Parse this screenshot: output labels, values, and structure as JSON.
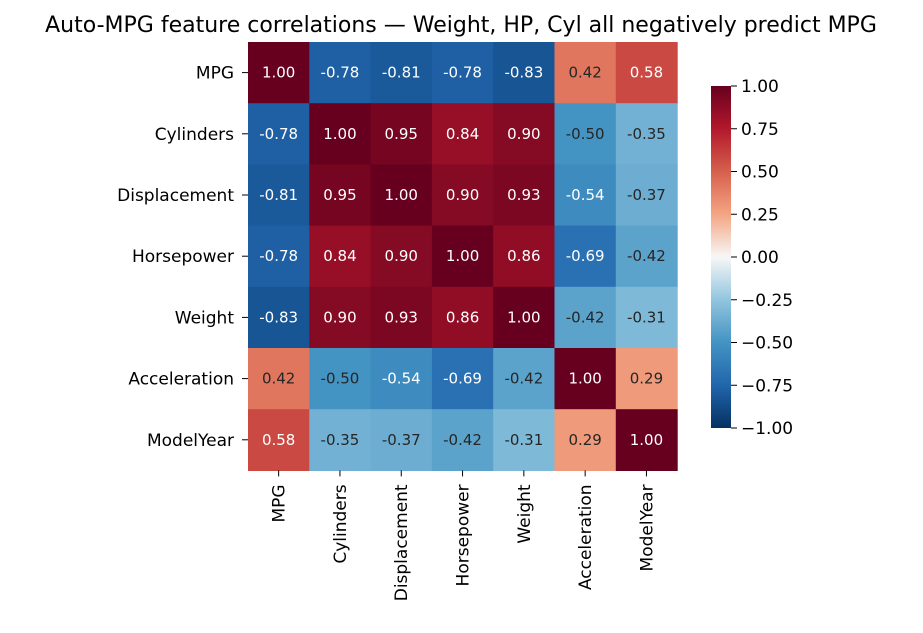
{
  "chart_data": {
    "type": "heatmap",
    "title": "Auto-MPG feature correlations — Weight, HP, Cyl all negatively predict MPG",
    "row_labels": [
      "MPG",
      "Cylinders",
      "Displacement",
      "Horsepower",
      "Weight",
      "Acceleration",
      "ModelYear"
    ],
    "col_labels": [
      "MPG",
      "Cylinders",
      "Displacement",
      "Horsepower",
      "Weight",
      "Acceleration",
      "ModelYear"
    ],
    "values": [
      [
        1.0,
        -0.78,
        -0.81,
        -0.78,
        -0.83,
        0.42,
        0.58
      ],
      [
        -0.78,
        1.0,
        0.95,
        0.84,
        0.9,
        -0.5,
        -0.35
      ],
      [
        -0.81,
        0.95,
        1.0,
        0.9,
        0.93,
        -0.54,
        -0.37
      ],
      [
        -0.78,
        0.84,
        0.9,
        1.0,
        0.86,
        -0.69,
        -0.42
      ],
      [
        -0.83,
        0.9,
        0.93,
        0.86,
        1.0,
        -0.42,
        -0.31
      ],
      [
        0.42,
        -0.5,
        -0.54,
        -0.69,
        -0.42,
        1.0,
        0.29
      ],
      [
        0.58,
        -0.35,
        -0.37,
        -0.42,
        -0.31,
        0.29,
        1.0
      ]
    ],
    "annotation_format": "0.00",
    "colormap": "RdBu_r",
    "vmin": -1.0,
    "vmax": 1.0,
    "colorbar": {
      "ticks": [
        1.0,
        0.75,
        0.5,
        0.25,
        0.0,
        -0.25,
        -0.5,
        -0.75,
        -1.0
      ],
      "tick_labels": [
        "1.00",
        "0.75",
        "0.50",
        "0.25",
        "0.00",
        "−0.25",
        "−0.50",
        "−0.75",
        "−1.00"
      ],
      "placement": "right"
    }
  }
}
